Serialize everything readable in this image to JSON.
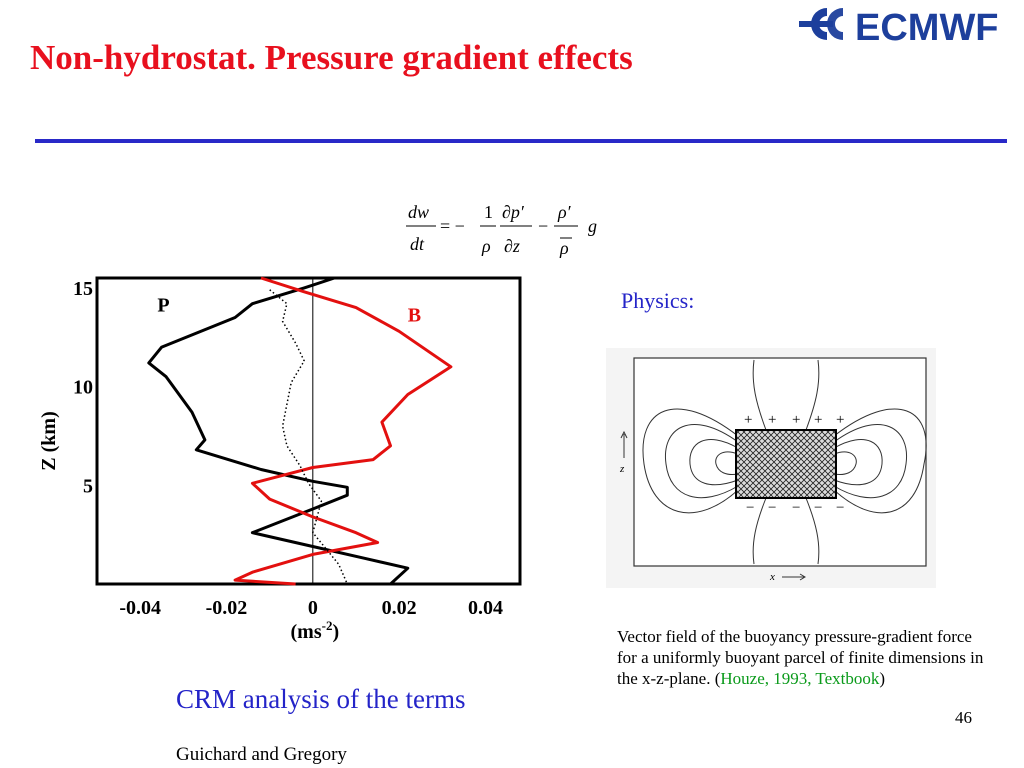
{
  "slide": {
    "title": "Non-hydrostat. Pressure gradient effects",
    "page_number": "46",
    "logo_text": "ECMWF",
    "physics_label": "Physics:",
    "crm_heading": "CRM analysis of the terms",
    "authors": "Guichard and Gregory",
    "caption": {
      "text": "Vector field of the buoyancy pressure-gradient force for a uniformly buoyant parcel of finite dimensions in the x-z-plane. (",
      "reference": "Houze, 1993, Textbook",
      "close": ")"
    },
    "colors": {
      "title": "#e8101e",
      "rule": "#2929c8",
      "blue_text": "#2424c8",
      "reference": "#0a9a1a",
      "logo": "#1d3f9c"
    }
  },
  "equation": {
    "lhs_num": "dw",
    "lhs_den": "dt",
    "eq": "= −",
    "frac1_num": "1",
    "frac1_den": "ρ",
    "frac2_num": "∂p′",
    "frac2_den": "∂z",
    "minus": "−",
    "frac3_num": "ρ′",
    "frac3_den": "ρ",
    "tail": "g"
  },
  "field_figure": {
    "z_label": "z",
    "x_label": "x",
    "plus_signs": [
      "+",
      "+",
      "+",
      "+",
      "+"
    ],
    "minus_signs": [
      "−",
      "−",
      "−",
      "−",
      "−"
    ]
  },
  "chart_data": {
    "type": "line",
    "title": "",
    "xlabel": "(ms-2)",
    "xlabel_base": "(ms",
    "xlabel_sup": "-2",
    "xlabel_close": ")",
    "ylabel": "Z (km)",
    "xlim": [
      -0.05,
      0.048
    ],
    "ylim": [
      0,
      15.5
    ],
    "xticks": [
      "-0.04",
      "-0.02",
      "0",
      "0.02",
      "0.04"
    ],
    "yticks": [
      "5",
      "10",
      "15"
    ],
    "grid": false,
    "series": [
      {
        "name": "P",
        "color": "#000000",
        "style": "solid",
        "points": [
          [
            0.005,
            15.5
          ],
          [
            -0.002,
            15.0
          ],
          [
            -0.014,
            14.2
          ],
          [
            -0.018,
            13.5
          ],
          [
            -0.035,
            12.0
          ],
          [
            -0.038,
            11.2
          ],
          [
            -0.034,
            10.5
          ],
          [
            -0.028,
            8.7
          ],
          [
            -0.025,
            7.3
          ],
          [
            -0.027,
            6.8
          ],
          [
            -0.012,
            5.8
          ],
          [
            0.0,
            5.2
          ],
          [
            0.008,
            4.9
          ],
          [
            0.008,
            4.5
          ],
          [
            0.0,
            3.8
          ],
          [
            -0.014,
            2.6
          ],
          [
            -0.008,
            2.3
          ],
          [
            0.0,
            1.9
          ],
          [
            0.012,
            1.3
          ],
          [
            0.022,
            0.8
          ],
          [
            0.018,
            0.0
          ],
          [
            0.0,
            0.0
          ]
        ]
      },
      {
        "name": "B",
        "color": "#e3100f",
        "style": "solid",
        "points": [
          [
            -0.012,
            15.5
          ],
          [
            -0.002,
            14.8
          ],
          [
            0.01,
            14.0
          ],
          [
            0.02,
            12.8
          ],
          [
            0.032,
            11.0
          ],
          [
            0.022,
            9.6
          ],
          [
            0.016,
            8.2
          ],
          [
            0.018,
            7.0
          ],
          [
            0.014,
            6.3
          ],
          [
            0.0,
            5.9
          ],
          [
            -0.014,
            5.1
          ],
          [
            -0.01,
            4.3
          ],
          [
            0.0,
            3.4
          ],
          [
            0.01,
            2.6
          ],
          [
            0.015,
            2.1
          ],
          [
            0.0,
            1.5
          ],
          [
            -0.014,
            0.6
          ],
          [
            -0.018,
            0.2
          ],
          [
            -0.004,
            0.0
          ]
        ]
      },
      {
        "name": "",
        "color": "#000000",
        "style": "dotted",
        "points": [
          [
            -0.01,
            14.9
          ],
          [
            -0.006,
            14.2
          ],
          [
            -0.007,
            13.3
          ],
          [
            -0.004,
            12.2
          ],
          [
            -0.002,
            11.3
          ],
          [
            -0.005,
            10.2
          ],
          [
            -0.006,
            9.1
          ],
          [
            -0.007,
            8.0
          ],
          [
            -0.006,
            7.0
          ],
          [
            -0.003,
            6.0
          ],
          [
            -0.001,
            5.1
          ],
          [
            0.002,
            4.2
          ],
          [
            0.001,
            3.4
          ],
          [
            0.0,
            2.6
          ],
          [
            0.003,
            1.8
          ],
          [
            0.006,
            1.0
          ],
          [
            0.008,
            0.0
          ]
        ]
      }
    ],
    "labels": [
      {
        "text": "P",
        "series": "P"
      },
      {
        "text": "B",
        "series": "B"
      }
    ]
  }
}
